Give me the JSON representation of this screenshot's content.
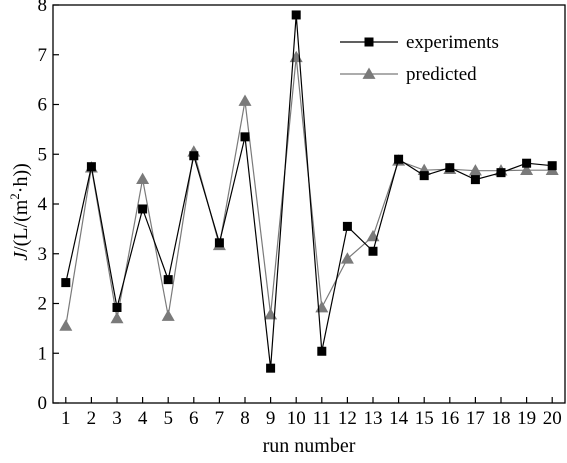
{
  "chart_data": {
    "type": "line",
    "title": "",
    "xlabel": "run number",
    "ylabel_main": "J",
    "ylabel_rest": "/(L/(m",
    "ylabel_sup": "2",
    "ylabel_tail": "·h))",
    "x": [
      1,
      2,
      3,
      4,
      5,
      6,
      7,
      8,
      9,
      10,
      11,
      12,
      13,
      14,
      15,
      16,
      17,
      18,
      19,
      20
    ],
    "xlim": [
      0.5,
      20.5
    ],
    "ylim": [
      0,
      8
    ],
    "yticks": [
      0,
      1,
      2,
      3,
      4,
      5,
      6,
      7,
      8
    ],
    "legend_position": "top-right",
    "grid": false,
    "series": [
      {
        "name": "experiments",
        "marker": "square",
        "color": "#000000",
        "values": [
          2.42,
          4.75,
          1.92,
          3.9,
          2.48,
          4.97,
          3.22,
          5.35,
          0.7,
          7.8,
          1.04,
          3.55,
          3.05,
          4.9,
          4.57,
          4.73,
          4.49,
          4.63,
          4.82,
          4.77
        ]
      },
      {
        "name": "predicted",
        "marker": "triangle",
        "color": "#7a7a7a",
        "values": [
          1.55,
          4.73,
          1.7,
          4.5,
          1.75,
          5.05,
          3.17,
          6.07,
          1.78,
          6.95,
          1.92,
          2.9,
          3.35,
          4.87,
          4.68,
          4.7,
          4.67,
          4.67,
          4.68,
          4.68
        ]
      }
    ]
  }
}
